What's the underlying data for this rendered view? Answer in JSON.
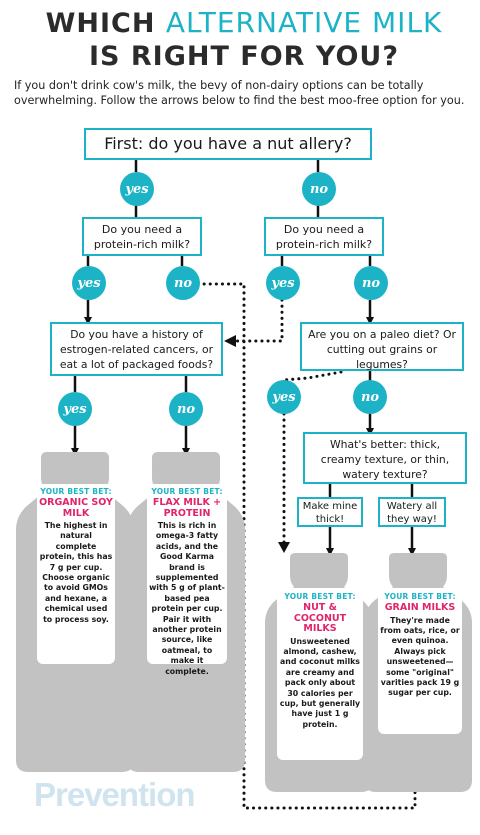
{
  "title": {
    "line1_a": "WHICH ",
    "line1_b": "ALTERNATIVE MILK",
    "line2": "IS RIGHT FOR YOU?"
  },
  "intro": "If you don't drink cow's milk, the bevy of non-dairy options can be totally overwhelming. Follow the arrows below to find the best moo-free option for you.",
  "colors": {
    "accent": "#1db3c6",
    "highlight": "#e0246c",
    "bottle": "#bcbcbc"
  },
  "questions": {
    "q1": "First: do you have a nut allery?",
    "q2a": "Do you need a protein-rich milk?",
    "q2b": "Do you need a protein-rich milk?",
    "q3a": "Do you have a history of estrogen-related cancers, or eat a lot of packaged foods?",
    "q3b": "Are you on a paleo diet? Or cutting out grains or legumes?",
    "q4": "What's better: thick, creamy texture, or thin, watery texture?"
  },
  "choices": {
    "thick": "Make mine thick!",
    "thin": "Watery all they way!"
  },
  "answers": {
    "yes": "yes",
    "no": "no"
  },
  "bottles": [
    {
      "label": "YOUR BEST BET:",
      "name": "ORGANIC SOY MILK",
      "desc": "The highest in natural complete protein, this has 7 g per cup. Choose organic to avoid GMOs and hexane, a chemical used to process soy."
    },
    {
      "label": "YOUR BEST BET:",
      "name": "FLAX MILK + PROTEIN",
      "desc": "This is rich in omega-3 fatty acids, and the Good Karma brand is supplemented with 5 g of plant-based pea protein per cup. Pair it with another protein source, like oatmeal, to make it complete."
    },
    {
      "label": "YOUR BEST BET:",
      "name": "NUT & COCONUT MILKS",
      "desc": "Unsweetened almond, cashew, and coconut milks are creamy and pack only about 30 calories per cup, but generally have just 1 g protein."
    },
    {
      "label": "YOUR BEST BET:",
      "name": "GRAIN MILKS",
      "desc": "They're made from oats, rice, or even quinoa. Always pick unsweetened—some \"original\" varities pack 19 g sugar per cup."
    }
  ],
  "brand": "Prevention"
}
